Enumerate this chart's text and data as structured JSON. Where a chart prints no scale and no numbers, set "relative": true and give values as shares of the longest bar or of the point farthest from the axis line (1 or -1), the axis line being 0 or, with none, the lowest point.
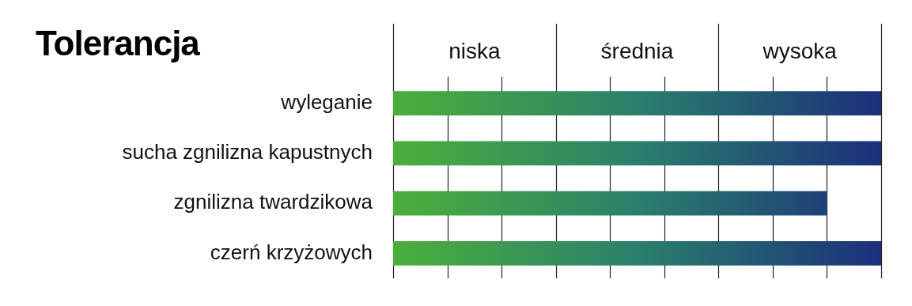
{
  "chart_data": {
    "type": "bar",
    "orientation": "horizontal",
    "relative": true,
    "title": "Tolerancja",
    "categories": [
      "wyleganie",
      "sucha zgnilizna kapustnych",
      "zgnilizna twardzikowa",
      "czerń krzyżowych"
    ],
    "values": [
      1,
      1,
      0.889,
      1
    ],
    "color": "#2a7f6c",
    "grid": "x",
    "legend": false,
    "annotations": [
      "niska",
      "średnia",
      "wysoka"
    ]
  }
}
